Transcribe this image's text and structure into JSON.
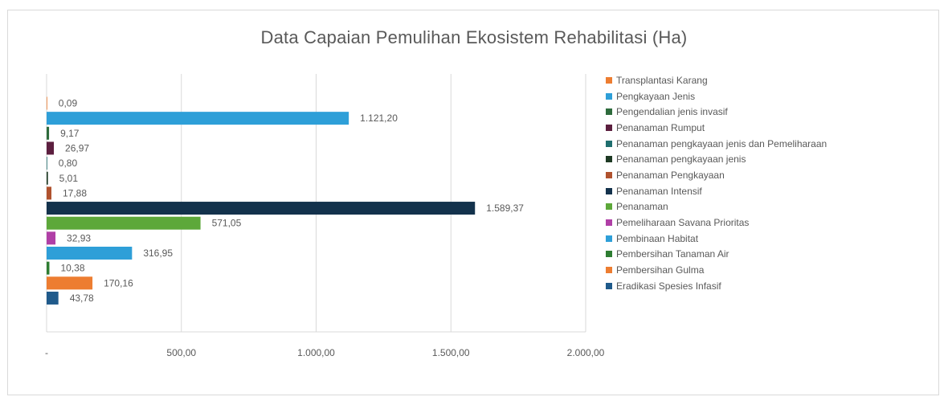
{
  "chart_data": {
    "type": "bar",
    "orientation": "horizontal",
    "title": "Data Capaian Pemulihan Ekosistem Rehabilitasi (Ha)",
    "xlim": [
      0,
      2000
    ],
    "x_ticks": [
      "-",
      "500,00",
      "1.000,00",
      "1.500,00",
      "2.000,00"
    ],
    "grid": "vertical",
    "legend_position": "right",
    "series": [
      {
        "name": "Transplantasi Karang",
        "value": 0.09,
        "label": "0,09",
        "color": "#ED7D31"
      },
      {
        "name": "Pengkayaan Jenis",
        "value": 1121.2,
        "label": "1.121,20",
        "color": "#2E9FD8"
      },
      {
        "name": "Pengendalian jenis invasif",
        "value": 9.17,
        "label": "9,17",
        "color": "#2E6B3C"
      },
      {
        "name": "Penanaman Rumput",
        "value": 26.97,
        "label": "26,97",
        "color": "#5C1F3F"
      },
      {
        "name": "Penanaman pengkayaan jenis dan Pemeliharaan",
        "value": 0.8,
        "label": "0,80",
        "color": "#1F6E6E"
      },
      {
        "name": "Penanaman pengkayaan jenis",
        "value": 5.01,
        "label": "5,01",
        "color": "#1E3A24"
      },
      {
        "name": "Penanaman Pengkayaan",
        "value": 17.88,
        "label": "17,88",
        "color": "#B0522E"
      },
      {
        "name": "Penanaman Intensif",
        "value": 1589.37,
        "label": "1.589,37",
        "color": "#13324C"
      },
      {
        "name": "Penanaman",
        "value": 571.05,
        "label": "571,05",
        "color": "#5DA83A"
      },
      {
        "name": "Pemeliharaan Savana Prioritas",
        "value": 32.93,
        "label": "32,93",
        "color": "#B03FA6"
      },
      {
        "name": "Pembinaan Habitat",
        "value": 316.95,
        "label": "316,95",
        "color": "#2E9FD8"
      },
      {
        "name": "Pembersihan Tanaman Air",
        "value": 10.38,
        "label": "10,38",
        "color": "#2E7D32"
      },
      {
        "name": "Pembersihan Gulma",
        "value": 170.16,
        "label": "170,16",
        "color": "#ED7D31"
      },
      {
        "name": "Eradikasi Spesies Infasif",
        "value": 43.78,
        "label": "43,78",
        "color": "#1F5A8B"
      }
    ]
  }
}
